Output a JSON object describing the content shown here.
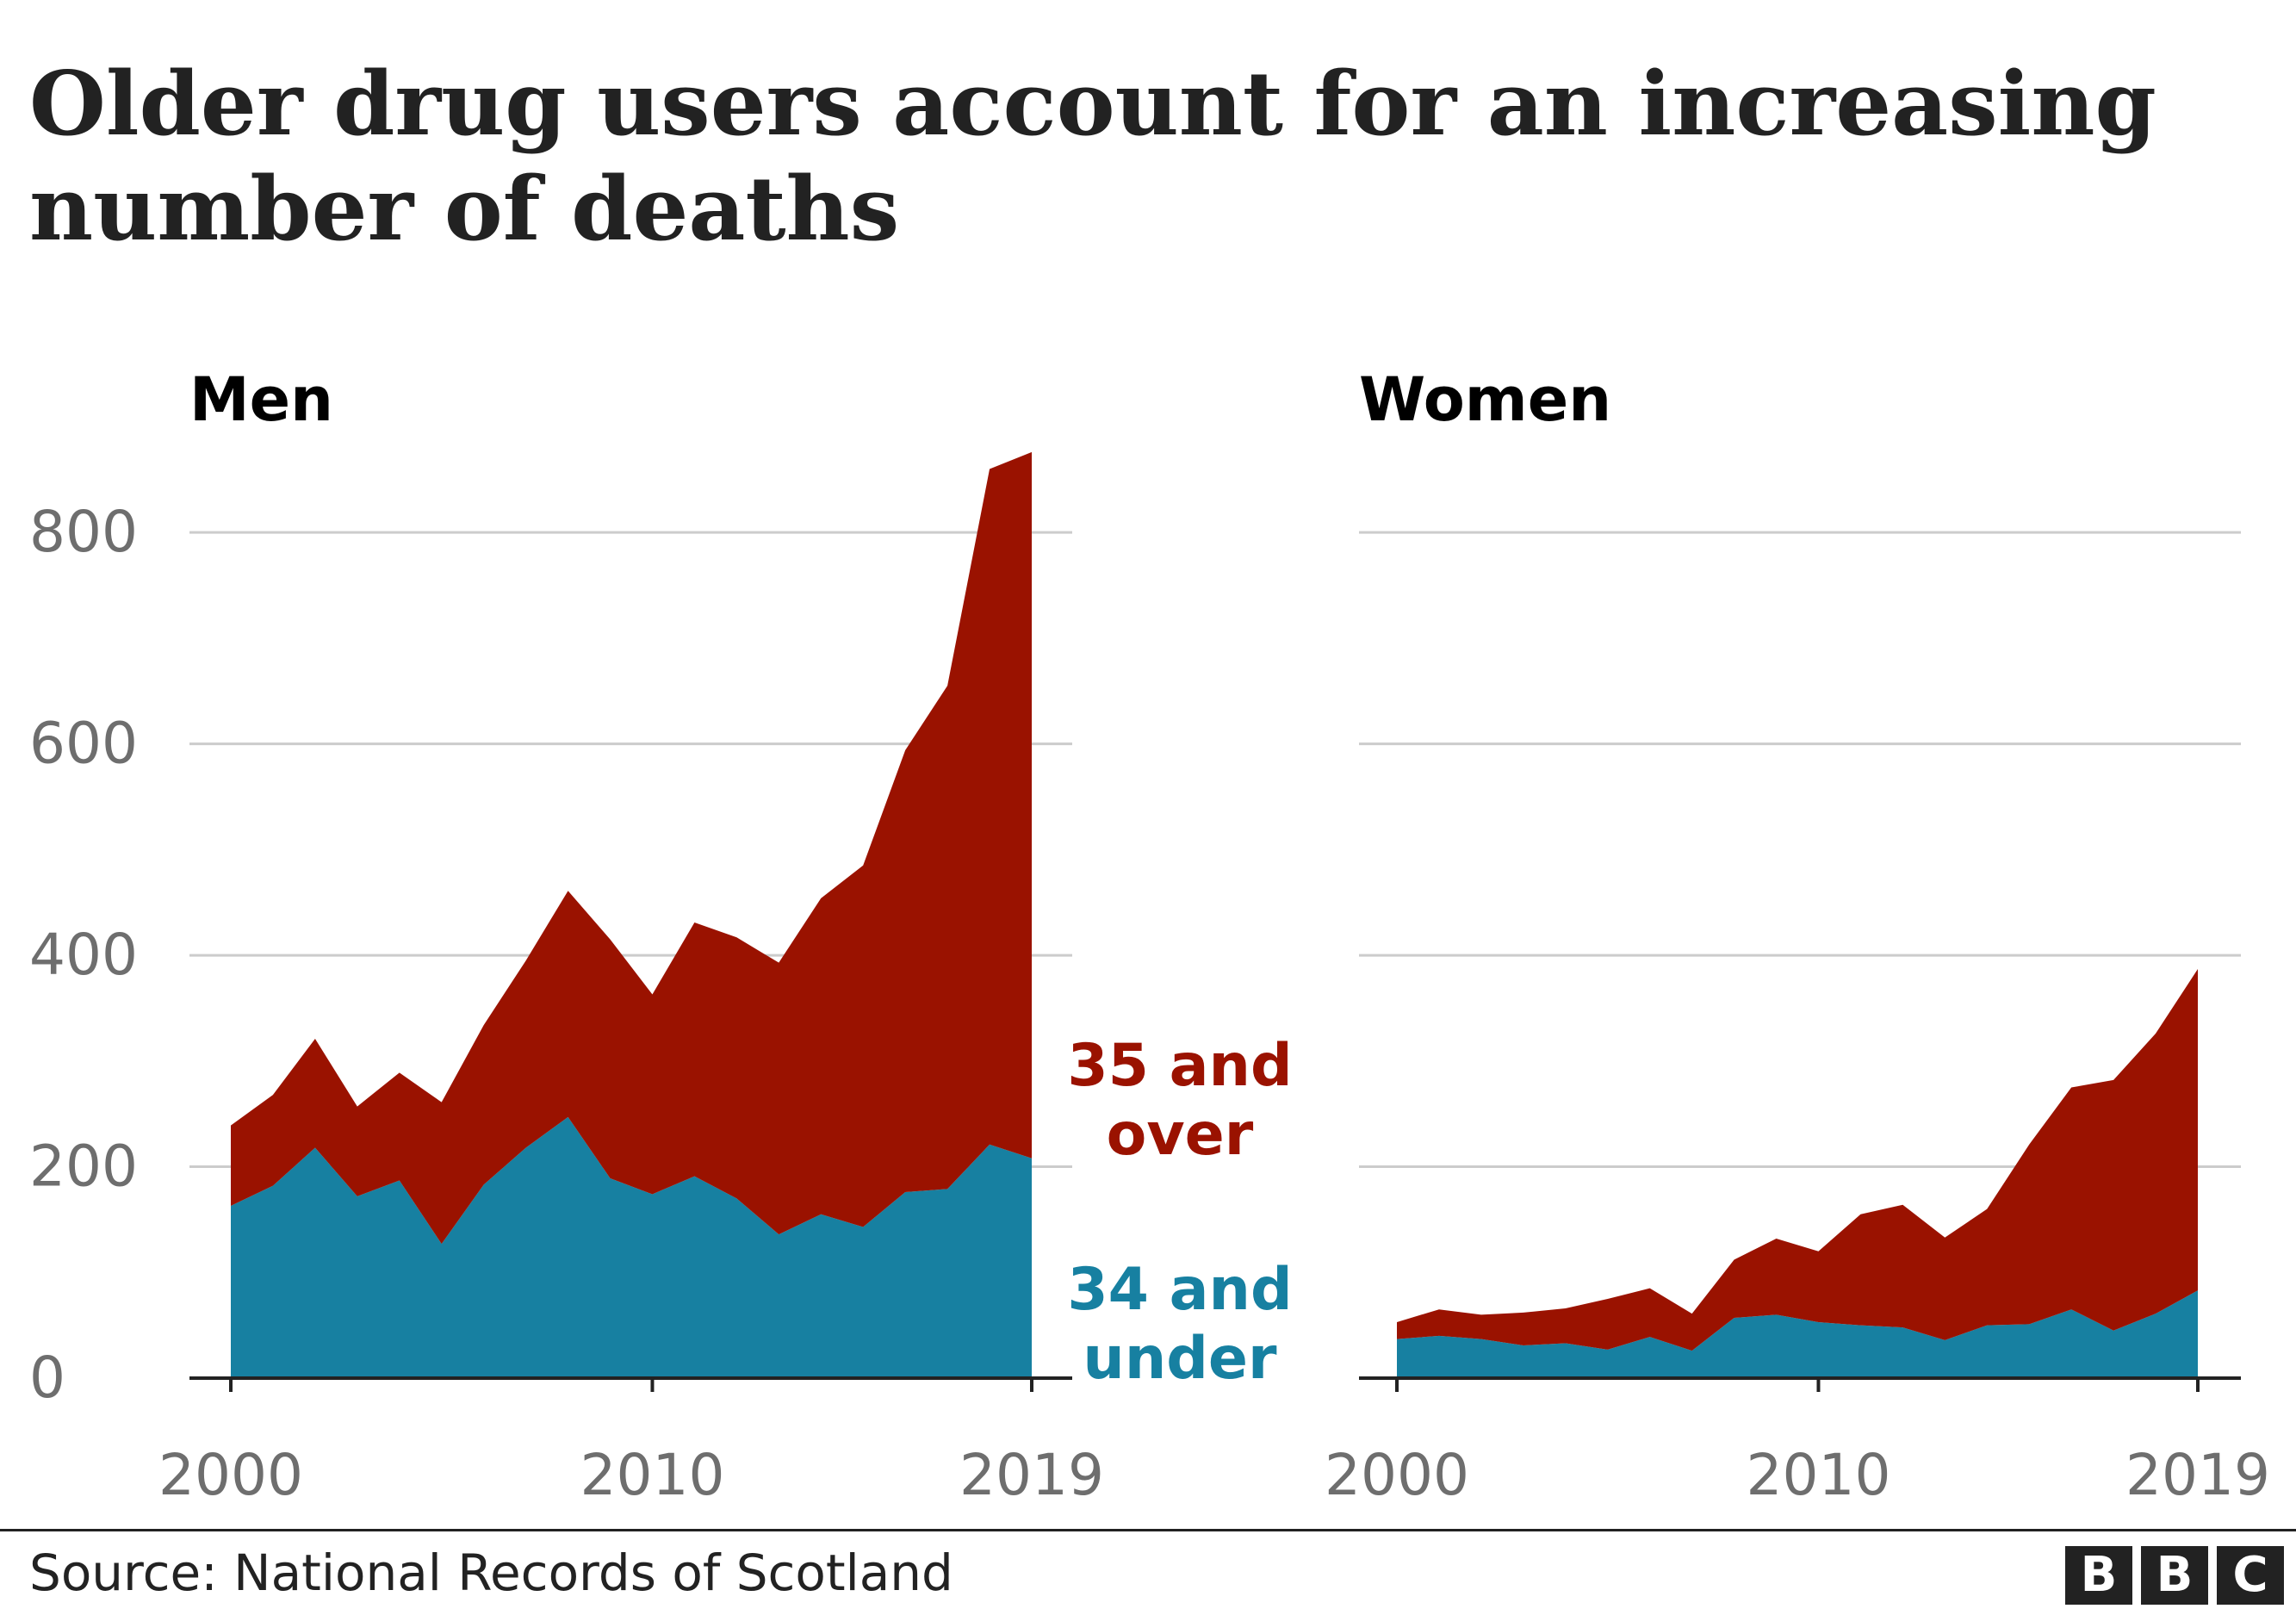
{
  "title": "Older drug users account for an increasing number of deaths",
  "source": "Source: National Records of Scotland",
  "logo_letters": [
    "B",
    "B",
    "C"
  ],
  "colors": {
    "over35": "#9a1200",
    "under34": "#1780a1",
    "grid": "#cccccc",
    "axis": "#222222",
    "tick_text": "#6e6e6e"
  },
  "chart_data": [
    {
      "type": "area",
      "title": "Men",
      "x": [
        2000,
        2001,
        2002,
        2003,
        2004,
        2005,
        2006,
        2007,
        2008,
        2009,
        2010,
        2011,
        2012,
        2013,
        2014,
        2015,
        2016,
        2017,
        2018,
        2019
      ],
      "series": [
        {
          "name": "34 and under",
          "values": [
            163,
            182,
            218,
            172,
            187,
            127,
            183,
            218,
            247,
            189,
            174,
            191,
            170,
            136,
            155,
            143,
            176,
            179,
            221,
            208
          ]
        },
        {
          "name": "35 and over",
          "values": [
            76,
            86,
            103,
            85,
            102,
            134,
            151,
            177,
            214,
            226,
            189,
            240,
            247,
            257,
            299,
            342,
            418,
            476,
            639,
            668
          ]
        }
      ],
      "stacked": true,
      "yticks": [
        0,
        200,
        400,
        600,
        800
      ],
      "xticks": [
        2000,
        2010,
        2019
      ],
      "ylim": [
        0,
        880
      ],
      "grid": true,
      "labels_inline": true
    },
    {
      "type": "area",
      "title": "Women",
      "x": [
        2000,
        2001,
        2002,
        2003,
        2004,
        2005,
        2006,
        2007,
        2008,
        2009,
        2010,
        2011,
        2012,
        2013,
        2014,
        2015,
        2016,
        2017,
        2018,
        2019
      ],
      "series": [
        {
          "name": "34 and under",
          "values": [
            37,
            40,
            37,
            31,
            33,
            27,
            39,
            26,
            57,
            60,
            53,
            50,
            48,
            36,
            50,
            51,
            65,
            45,
            61,
            83
          ]
        },
        {
          "name": "35 and over",
          "values": [
            16,
            25,
            23,
            31,
            33,
            48,
            46,
            35,
            55,
            72,
            67,
            105,
            116,
            97,
            110,
            170,
            210,
            237,
            265,
            304
          ]
        }
      ],
      "stacked": true,
      "yticks": [
        0,
        200,
        400,
        600,
        800
      ],
      "xticks": [
        2000,
        2010,
        2019
      ],
      "ylim": [
        0,
        880
      ],
      "grid": true
    }
  ],
  "inline_labels": {
    "over35_line1": "35 and",
    "over35_line2": "over",
    "under34_line1": "34 and",
    "under34_line2": "under"
  }
}
